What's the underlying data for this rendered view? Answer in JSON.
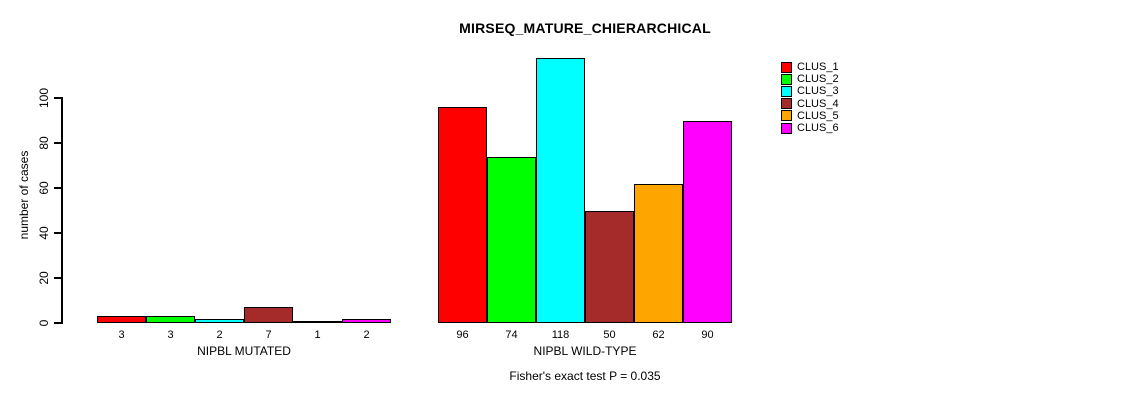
{
  "chart_data": {
    "type": "bar",
    "title": "MIRSEQ_MATURE_CHIERARCHICAL",
    "ylabel": "number of cases",
    "xlabel": "",
    "ylim": [
      0,
      100
    ],
    "yticks": [
      0,
      20,
      40,
      60,
      80,
      100
    ],
    "grid": false,
    "legend_position": "right",
    "categories": [
      "NIPBL MUTATED",
      "NIPBL WILD-TYPE"
    ],
    "groups": [
      {
        "label": "NIPBL MUTATED",
        "values": [
          3,
          3,
          2,
          7,
          1,
          2
        ]
      },
      {
        "label": "NIPBL WILD-TYPE",
        "values": [
          96,
          74,
          118,
          50,
          62,
          90
        ]
      }
    ],
    "series": [
      {
        "name": "CLUS_1",
        "color": "#FF0000",
        "values": [
          3,
          96
        ]
      },
      {
        "name": "CLUS_2",
        "color": "#00FF00",
        "values": [
          3,
          74
        ]
      },
      {
        "name": "CLUS_3",
        "color": "#00FFFF",
        "values": [
          2,
          118
        ]
      },
      {
        "name": "CLUS_4",
        "color": "#A52A2A",
        "values": [
          7,
          50
        ]
      },
      {
        "name": "CLUS_5",
        "color": "#FFA500",
        "values": [
          1,
          62
        ]
      },
      {
        "name": "CLUS_6",
        "color": "#FF00FF",
        "values": [
          2,
          90
        ]
      }
    ],
    "footnote": "Fisher's exact test P = 0.035"
  }
}
